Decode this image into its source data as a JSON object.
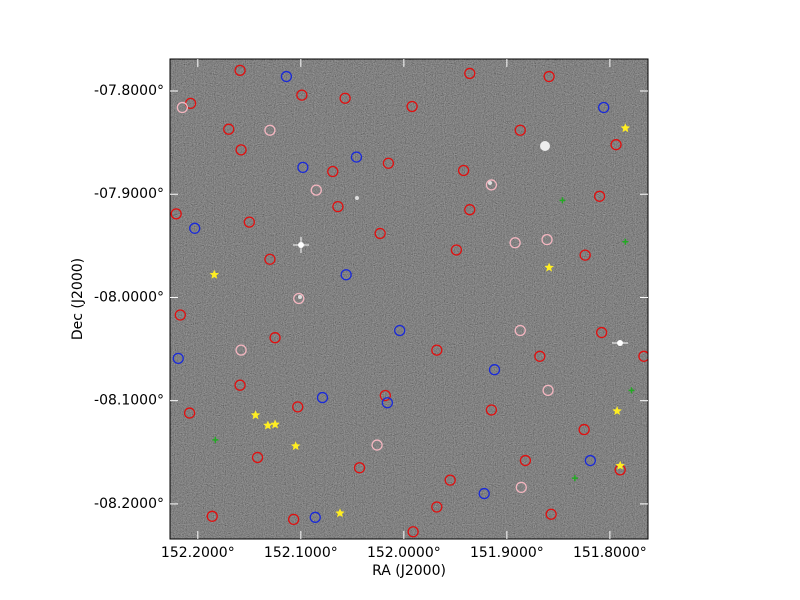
{
  "chart_data": {
    "type": "scatter",
    "x_label": "RA (J2000)",
    "y_label": "Dec (J2000)",
    "xlim": [
      152.227,
      151.763
    ],
    "ylim": [
      -8.234,
      -7.769
    ],
    "xticks": [
      {
        "value": 152.2,
        "label": "152.2000°"
      },
      {
        "value": 152.1,
        "label": "152.1000°"
      },
      {
        "value": 152.0,
        "label": "152.0000°"
      },
      {
        "value": 151.9,
        "label": "151.9000°"
      },
      {
        "value": 151.8,
        "label": "151.8000°"
      }
    ],
    "yticks": [
      {
        "value": -7.8,
        "label": "-07.8000°"
      },
      {
        "value": -7.9,
        "label": "-07.9000°"
      },
      {
        "value": -8.0,
        "label": "-08.0000°"
      },
      {
        "value": -8.1,
        "label": "-08.1000°"
      },
      {
        "value": -8.2,
        "label": "-08.2000°"
      }
    ],
    "series": [
      {
        "color": "#e01010",
        "marker": "circle",
        "x": [
          152.207,
          152.17,
          152.159,
          152.099,
          152.057,
          152.015,
          151.992,
          151.936,
          151.859,
          151.794,
          151.887,
          151.942,
          152.069,
          152.158,
          152.221,
          152.15,
          152.064,
          151.936,
          151.81,
          151.824,
          151.949,
          152.023,
          152.13,
          152.217,
          152.125,
          151.968,
          151.868,
          151.767,
          151.825,
          151.915,
          152.018,
          152.103,
          152.159,
          152.208,
          152.142,
          152.043,
          151.955,
          151.882,
          151.79,
          151.857,
          151.968,
          152.107,
          152.186,
          151.991,
          151.808
        ],
        "y": [
          -7.812,
          -7.837,
          -7.78,
          -7.804,
          -7.807,
          -7.87,
          -7.815,
          -7.783,
          -7.786,
          -7.852,
          -7.838,
          -7.877,
          -7.878,
          -7.857,
          -7.919,
          -7.927,
          -7.912,
          -7.915,
          -7.902,
          -7.959,
          -7.954,
          -7.938,
          -7.963,
          -8.017,
          -8.039,
          -8.051,
          -8.057,
          -8.057,
          -8.128,
          -8.109,
          -8.095,
          -8.106,
          -8.085,
          -8.112,
          -8.155,
          -8.165,
          -8.177,
          -8.158,
          -8.167,
          -8.21,
          -8.203,
          -8.215,
          -8.212,
          -8.227,
          -8.034
        ]
      },
      {
        "color": "#f4b6c0",
        "marker": "circle",
        "x": [
          152.215,
          152.13,
          152.085,
          152.102,
          152.026,
          151.892,
          151.861,
          151.887,
          151.86,
          151.915,
          152.158,
          151.886
        ],
        "y": [
          -7.816,
          -7.838,
          -7.896,
          -8.001,
          -8.143,
          -7.947,
          -7.944,
          -8.032,
          -8.09,
          -7.891,
          -8.051,
          -8.184
        ]
      },
      {
        "color": "#1a2ad8",
        "marker": "circle",
        "x": [
          152.114,
          152.046,
          152.098,
          152.203,
          152.056,
          152.004,
          151.912,
          152.079,
          152.016,
          151.922,
          152.086,
          151.806,
          151.819,
          152.219
        ],
        "y": [
          -7.786,
          -7.864,
          -7.874,
          -7.933,
          -7.978,
          -8.032,
          -8.07,
          -8.097,
          -8.102,
          -8.19,
          -8.213,
          -7.816,
          -8.158,
          -8.059
        ]
      },
      {
        "color": "#22aa22",
        "marker": "cross",
        "x": [
          151.846,
          151.785,
          152.183,
          151.779,
          151.834
        ],
        "y": [
          -7.906,
          -7.946,
          -8.138,
          -8.09,
          -8.175
        ]
      },
      {
        "color": "#ffee22",
        "marker": "star",
        "x": [
          151.785,
          152.184,
          151.859,
          152.144,
          152.132,
          152.125,
          152.105,
          152.062,
          151.793,
          151.79
        ],
        "y": [
          -7.836,
          -7.978,
          -7.971,
          -8.114,
          -8.124,
          -8.123,
          -8.144,
          -8.209,
          -8.11,
          -8.163
        ]
      }
    ]
  }
}
